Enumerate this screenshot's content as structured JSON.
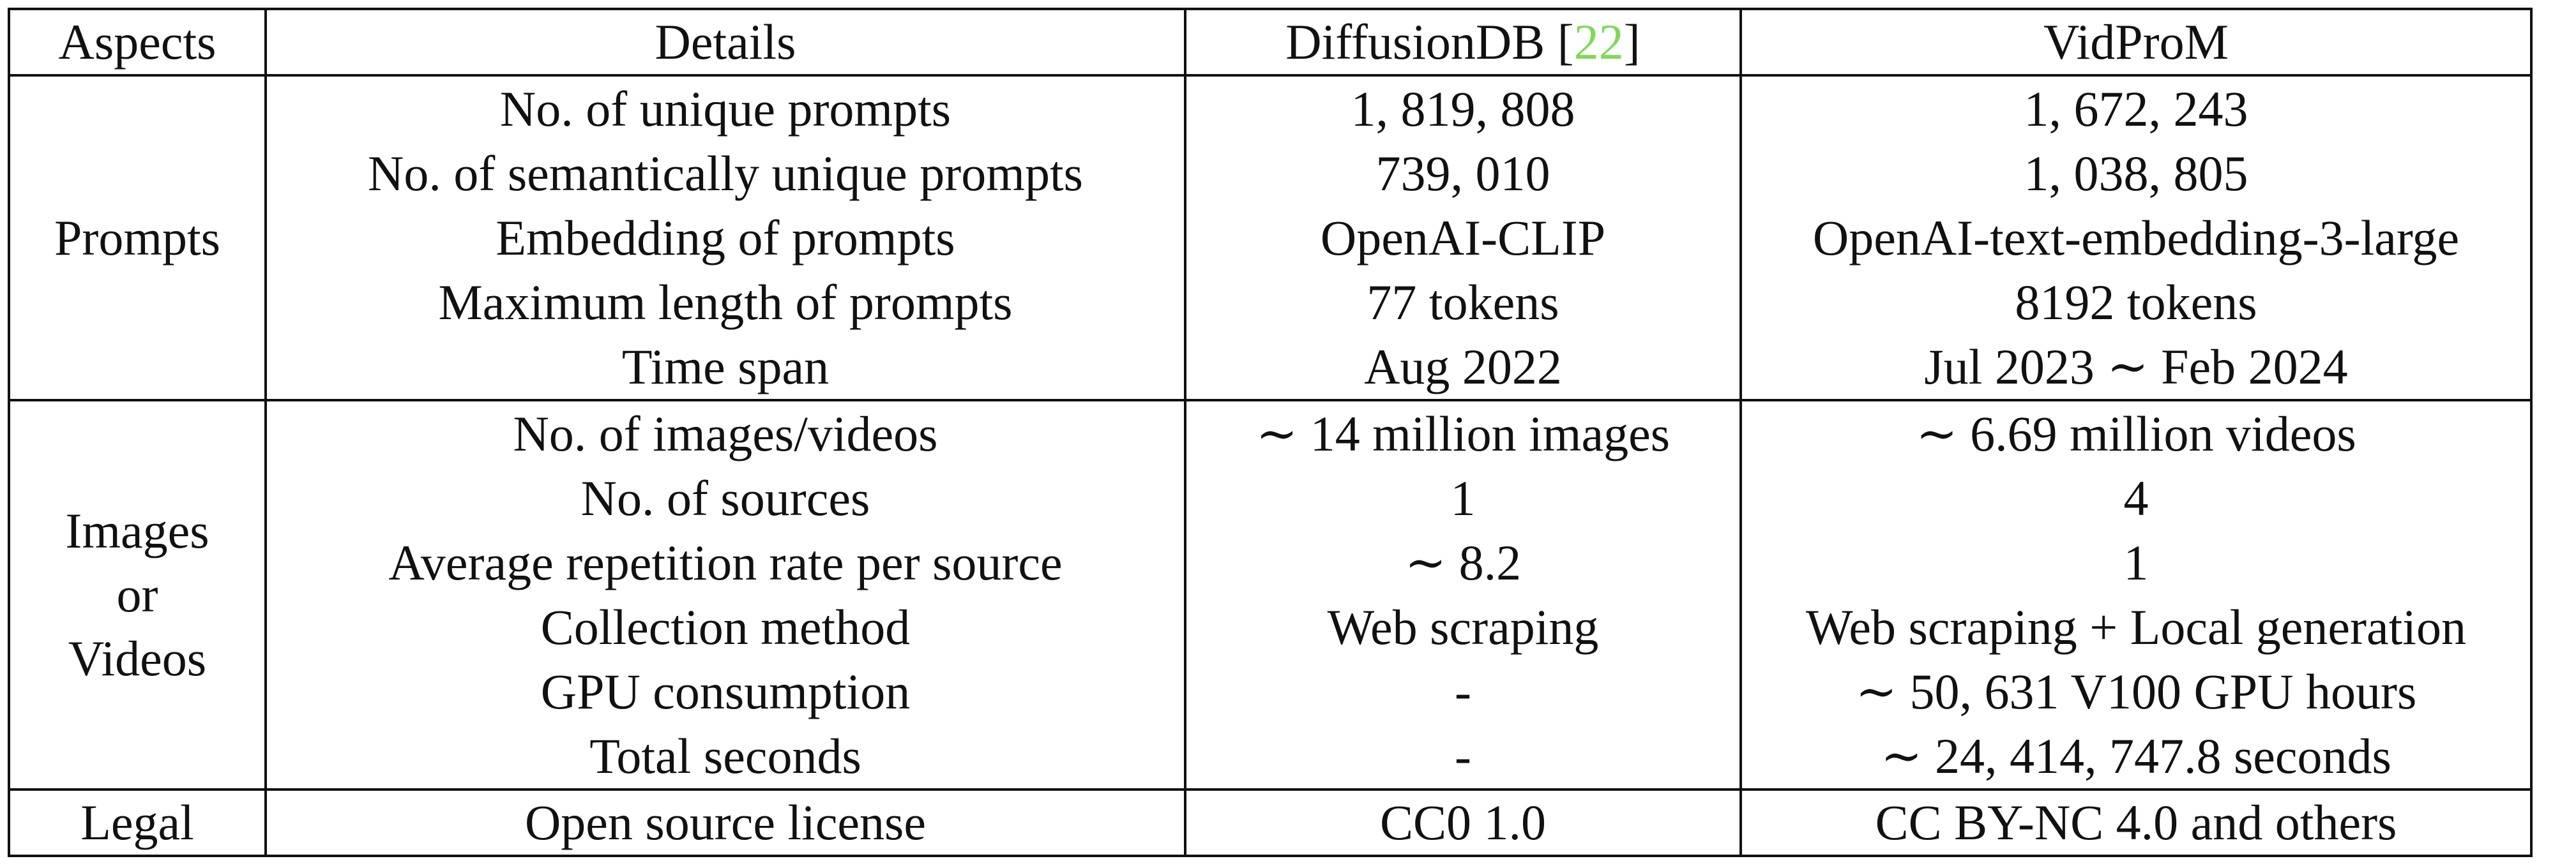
{
  "table": {
    "headers": {
      "aspects": "Aspects",
      "details": "Details",
      "diffusiondb": "DiffusionDB [",
      "diffusiondb_cite": "22",
      "diffusiondb_close": "]",
      "vidprom": "VidProM"
    },
    "cite_color": "#7ed957",
    "groups": {
      "prompts": {
        "label": "Prompts",
        "rows": [
          {
            "detail": "No. of unique prompts",
            "diffusiondb": "1, 819, 808",
            "vidprom": "1, 672, 243"
          },
          {
            "detail": "No. of semantically unique prompts",
            "diffusiondb": "739, 010",
            "vidprom": "1, 038, 805"
          },
          {
            "detail": "Embedding of prompts",
            "diffusiondb": "OpenAI-CLIP",
            "vidprom": "OpenAI-text-embedding-3-large"
          },
          {
            "detail": "Maximum length of prompts",
            "diffusiondb": "77 tokens",
            "vidprom": "8192 tokens"
          },
          {
            "detail": "Time span",
            "diffusiondb": "Aug 2022",
            "vidprom": "Jul 2023 ∼ Feb 2024"
          }
        ]
      },
      "images_videos": {
        "label_line1": "Images",
        "label_line2": "or",
        "label_line3": "Videos",
        "rows": [
          {
            "detail": "No. of images/videos",
            "diffusiondb": "∼ 14 million images",
            "vidprom": "∼ 6.69 million videos"
          },
          {
            "detail": "No. of sources",
            "diffusiondb": "1",
            "vidprom": "4"
          },
          {
            "detail": "Average repetition rate per source",
            "diffusiondb": "∼ 8.2",
            "vidprom": "1"
          },
          {
            "detail": "Collection method",
            "diffusiondb": "Web scraping",
            "vidprom": "Web scraping + Local generation"
          },
          {
            "detail": "GPU consumption",
            "diffusiondb": "-",
            "vidprom": "∼ 50, 631 V100 GPU hours"
          },
          {
            "detail": "Total seconds",
            "diffusiondb": "-",
            "vidprom": "∼ 24, 414, 747.8 seconds"
          }
        ]
      },
      "legal": {
        "label": "Legal",
        "rows": [
          {
            "detail": "Open source license",
            "diffusiondb": "CC0 1.0",
            "vidprom": "CC BY-NC 4.0 and others"
          }
        ]
      }
    }
  }
}
